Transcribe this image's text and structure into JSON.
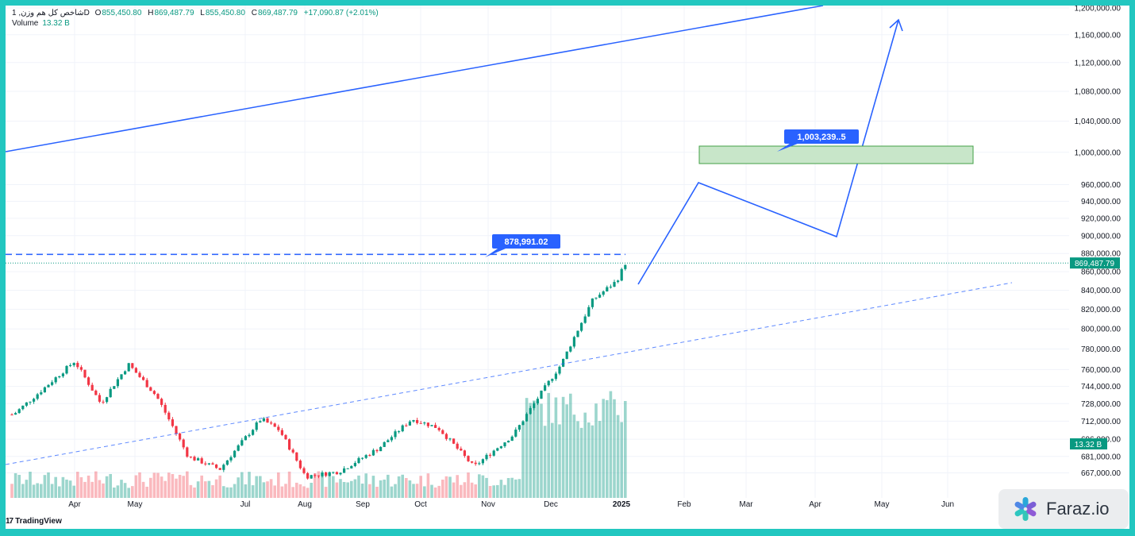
{
  "legend": {
    "symbol": "شاخص کل هم وزن, 1D",
    "open_label": "O",
    "open": "855,450.80",
    "high_label": "H",
    "high": "869,487.79",
    "low_label": "L",
    "low": "855,450.80",
    "close_label": "C",
    "close": "869,487.79",
    "change": "+17,090.87 (+2.01%)",
    "volume_label": "Volume",
    "volume": "13.32 B"
  },
  "watermark": "TradingView",
  "brand": {
    "name": "Faraz.io",
    "icon": "asterisk-logo-icon"
  },
  "colors": {
    "up": "#089981",
    "down": "#f23645",
    "drawing": "#2962ff",
    "zone_fill": "#c8e6c9",
    "zone_border": "#43a047"
  },
  "chart_data": {
    "type": "candlestick",
    "y_scale": "log",
    "y_ticks": [
      "1,200,000.00",
      "1,160,000.00",
      "1,120,000.00",
      "1,080,000.00",
      "1,040,000.00",
      "1,000,000.00",
      "960,000.00",
      "940,000.00",
      "920,000.00",
      "900,000.00",
      "880,000.00",
      "860,000.00",
      "840,000.00",
      "820,000.00",
      "800,000.00",
      "780,000.00",
      "760,000.00",
      "744,000.00",
      "728,000.00",
      "712,000.00",
      "696,000.00",
      "681,000.00",
      "667,000.00"
    ],
    "x_ticks": [
      "Apr",
      "May",
      "Jul",
      "Aug",
      "Sep",
      "Oct",
      "Nov",
      "Dec",
      "2025",
      "Feb",
      "Mar",
      "Apr",
      "May",
      "Jun"
    ],
    "last_price_label": "869,487.79",
    "volume_label": "13.32 B",
    "annotations": [
      {
        "text": "878,991.02",
        "value": 878991.02,
        "kind": "horizontal dashed level"
      },
      {
        "text": "1,003,239..5",
        "value": 1003239.5,
        "kind": "target zone"
      }
    ],
    "close_path": [
      {
        "t": "Mar",
        "v": 718000
      },
      {
        "t": "Mar",
        "v": 740000
      },
      {
        "t": "Apr",
        "v": 768000
      },
      {
        "t": "Apr",
        "v": 728000
      },
      {
        "t": "May",
        "v": 765000
      },
      {
        "t": "May",
        "v": 735000
      },
      {
        "t": "Jun",
        "v": 681000
      },
      {
        "t": "Jun",
        "v": 670000
      },
      {
        "t": "Jul",
        "v": 714000
      },
      {
        "t": "Jul",
        "v": 704000
      },
      {
        "t": "Aug",
        "v": 664000
      },
      {
        "t": "Sep",
        "v": 668000
      },
      {
        "t": "Sep",
        "v": 688000
      },
      {
        "t": "Oct",
        "v": 714000
      },
      {
        "t": "Oct",
        "v": 706000
      },
      {
        "t": "Nov",
        "v": 672000
      },
      {
        "t": "Nov",
        "v": 700000
      },
      {
        "t": "Dec",
        "v": 765000
      },
      {
        "t": "Dec",
        "v": 830000
      },
      {
        "t": "Dec",
        "v": 850000
      },
      {
        "t": "2025",
        "v": 869487.79
      }
    ]
  }
}
